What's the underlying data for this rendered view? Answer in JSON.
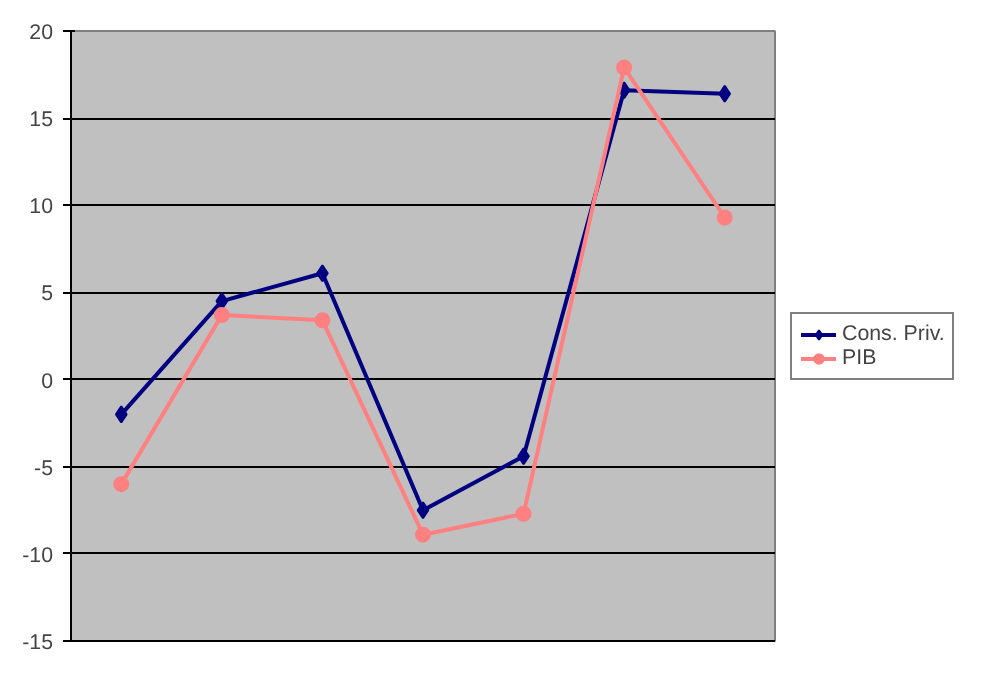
{
  "chart_data": {
    "type": "line",
    "categories": [
      null,
      null,
      null,
      null,
      null,
      null,
      null
    ],
    "series": [
      {
        "name": "Cons. Priv.",
        "color": "#000080",
        "marker": "diamond",
        "values": [
          -2.0,
          4.5,
          6.1,
          -7.5,
          -4.4,
          16.6,
          16.4
        ]
      },
      {
        "name": "PIB",
        "color": "#ff8080",
        "marker": "circle",
        "values": [
          -6.0,
          3.7,
          3.4,
          -8.9,
          -7.7,
          17.9,
          9.3
        ]
      }
    ],
    "ylim": [
      -15,
      20
    ],
    "yticks": [
      -15,
      -10,
      -5,
      0,
      5,
      10,
      15,
      20
    ],
    "grid": "y",
    "legend": "right",
    "tick_labels": "y",
    "line_style": "solid"
  }
}
